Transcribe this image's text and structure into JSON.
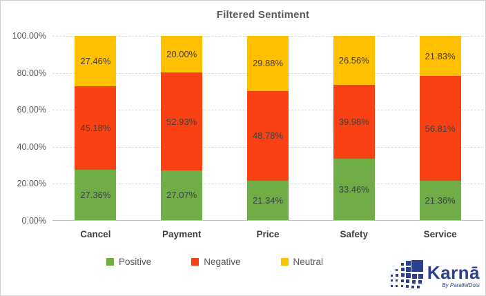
{
  "chart_data": {
    "type": "bar",
    "stacked": true,
    "title": "Filtered Sentiment",
    "categories": [
      "Cancel",
      "Payment",
      "Price",
      "Safety",
      "Service"
    ],
    "series": [
      {
        "name": "Positive",
        "color": "#70AD47",
        "values": [
          27.36,
          27.07,
          21.34,
          33.46,
          21.36
        ]
      },
      {
        "name": "Negative",
        "color": "#FA4114",
        "values": [
          45.18,
          52.93,
          48.78,
          39.98,
          56.81
        ]
      },
      {
        "name": "Neutral",
        "color": "#FFC000",
        "values": [
          27.46,
          20.0,
          29.88,
          26.56,
          21.83
        ]
      }
    ],
    "y_ticks": [
      {
        "label": "0.00%",
        "value": 0
      },
      {
        "label": "20.00%",
        "value": 20
      },
      {
        "label": "40.00%",
        "value": 40
      },
      {
        "label": "60.00%",
        "value": 60
      },
      {
        "label": "80.00%",
        "value": 80
      },
      {
        "label": "100.00%",
        "value": 100
      }
    ],
    "ylim": [
      0,
      100
    ],
    "gridlines": "dashed",
    "legend_position": "bottom",
    "value_label_format": "0.00%"
  },
  "colors": {
    "title": "#595959",
    "axis_text": "#595959",
    "category_text": "#404040",
    "gridline": "#D9D9D9",
    "axis_line": "#BFBFBF",
    "logo_blue": "#2B3F8F"
  },
  "logo": {
    "brand": "Karnā",
    "byline": "By ParallelDots"
  }
}
